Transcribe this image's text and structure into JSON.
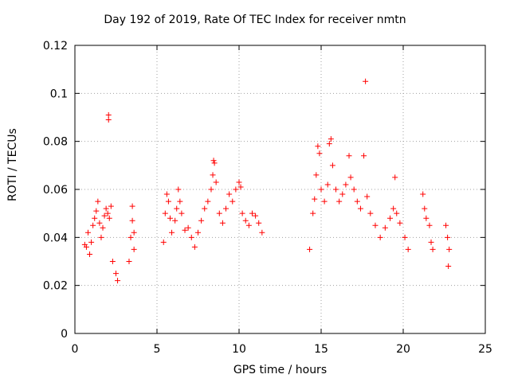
{
  "chart_data": {
    "type": "scatter",
    "title": "Day 192 of 2019, Rate Of TEC Index for receiver nmtn",
    "xlabel": "GPS time / hours",
    "ylabel": "ROTI / TECUs",
    "xlim": [
      0,
      25
    ],
    "ylim": [
      0,
      0.12
    ],
    "xticks": [
      "0",
      "5",
      "10",
      "15",
      "20",
      "25"
    ],
    "yticks": [
      "0",
      "0.02",
      "0.04",
      "0.06",
      "0.08",
      "0.1",
      "0.12"
    ],
    "grid": true,
    "marker": "+",
    "marker_color": "#ff0000",
    "series": [
      {
        "points": [
          [
            0.6,
            0.037
          ],
          [
            0.7,
            0.036
          ],
          [
            0.8,
            0.042
          ],
          [
            0.9,
            0.033
          ],
          [
            1.0,
            0.038
          ],
          [
            1.1,
            0.045
          ],
          [
            1.2,
            0.048
          ],
          [
            1.3,
            0.051
          ],
          [
            1.4,
            0.055
          ],
          [
            1.5,
            0.046
          ],
          [
            1.6,
            0.04
          ],
          [
            1.7,
            0.044
          ],
          [
            1.8,
            0.049
          ],
          [
            1.9,
            0.052
          ],
          [
            2.0,
            0.05
          ],
          [
            2.05,
            0.091
          ],
          [
            2.05,
            0.089
          ],
          [
            2.1,
            0.048
          ],
          [
            2.2,
            0.053
          ],
          [
            2.3,
            0.03
          ],
          [
            2.5,
            0.025
          ],
          [
            2.6,
            0.022
          ],
          [
            3.3,
            0.03
          ],
          [
            3.4,
            0.04
          ],
          [
            3.5,
            0.047
          ],
          [
            3.5,
            0.053
          ],
          [
            3.6,
            0.042
          ],
          [
            3.6,
            0.035
          ],
          [
            5.4,
            0.038
          ],
          [
            5.5,
            0.05
          ],
          [
            5.6,
            0.058
          ],
          [
            5.7,
            0.055
          ],
          [
            5.8,
            0.048
          ],
          [
            5.9,
            0.042
          ],
          [
            6.1,
            0.047
          ],
          [
            6.2,
            0.052
          ],
          [
            6.3,
            0.06
          ],
          [
            6.4,
            0.055
          ],
          [
            6.5,
            0.05
          ],
          [
            6.7,
            0.043
          ],
          [
            6.9,
            0.044
          ],
          [
            7.1,
            0.04
          ],
          [
            7.3,
            0.036
          ],
          [
            7.5,
            0.042
          ],
          [
            7.7,
            0.047
          ],
          [
            7.9,
            0.052
          ],
          [
            8.1,
            0.055
          ],
          [
            8.3,
            0.06
          ],
          [
            8.4,
            0.066
          ],
          [
            8.45,
            0.072
          ],
          [
            8.5,
            0.071
          ],
          [
            8.6,
            0.063
          ],
          [
            8.8,
            0.05
          ],
          [
            9.0,
            0.046
          ],
          [
            9.2,
            0.052
          ],
          [
            9.4,
            0.058
          ],
          [
            9.6,
            0.055
          ],
          [
            9.8,
            0.06
          ],
          [
            10.0,
            0.063
          ],
          [
            10.1,
            0.061
          ],
          [
            10.2,
            0.05
          ],
          [
            10.4,
            0.047
          ],
          [
            10.6,
            0.045
          ],
          [
            10.8,
            0.05
          ],
          [
            11.0,
            0.049
          ],
          [
            11.2,
            0.046
          ],
          [
            11.4,
            0.042
          ],
          [
            14.3,
            0.035
          ],
          [
            14.5,
            0.05
          ],
          [
            14.6,
            0.056
          ],
          [
            14.7,
            0.066
          ],
          [
            14.8,
            0.078
          ],
          [
            14.9,
            0.075
          ],
          [
            15.0,
            0.06
          ],
          [
            15.2,
            0.055
          ],
          [
            15.4,
            0.062
          ],
          [
            15.5,
            0.079
          ],
          [
            15.6,
            0.081
          ],
          [
            15.7,
            0.07
          ],
          [
            15.9,
            0.06
          ],
          [
            16.1,
            0.055
          ],
          [
            16.3,
            0.058
          ],
          [
            16.5,
            0.062
          ],
          [
            16.7,
            0.074
          ],
          [
            16.8,
            0.065
          ],
          [
            17.0,
            0.06
          ],
          [
            17.2,
            0.055
          ],
          [
            17.4,
            0.052
          ],
          [
            17.6,
            0.074
          ],
          [
            17.7,
            0.105
          ],
          [
            17.8,
            0.057
          ],
          [
            18.0,
            0.05
          ],
          [
            18.3,
            0.045
          ],
          [
            18.6,
            0.04
          ],
          [
            18.9,
            0.044
          ],
          [
            19.2,
            0.048
          ],
          [
            19.4,
            0.052
          ],
          [
            19.5,
            0.065
          ],
          [
            19.6,
            0.05
          ],
          [
            19.8,
            0.046
          ],
          [
            20.1,
            0.04
          ],
          [
            20.3,
            0.035
          ],
          [
            21.2,
            0.058
          ],
          [
            21.3,
            0.052
          ],
          [
            21.4,
            0.048
          ],
          [
            21.6,
            0.045
          ],
          [
            21.7,
            0.038
          ],
          [
            21.8,
            0.035
          ],
          [
            22.6,
            0.045
          ],
          [
            22.7,
            0.04
          ],
          [
            22.8,
            0.035
          ],
          [
            22.75,
            0.028
          ]
        ]
      }
    ]
  }
}
